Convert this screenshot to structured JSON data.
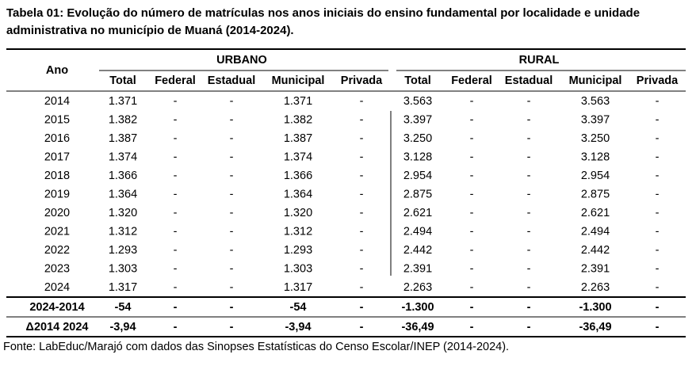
{
  "title": "Tabela 01: Evolução do número de matrículas nos anos iniciais do ensino fundamental por localidade e unidade administrativa no município de Muaná (2014-2024).",
  "table": {
    "year_header": "Ano",
    "groups": [
      "URBANO",
      "RURAL"
    ],
    "columns": [
      "Total",
      "Federal",
      "Estadual",
      "Municipal",
      "Privada",
      "Total",
      "Federal",
      "Estadual",
      "Municipal",
      "Privada"
    ],
    "rows": [
      [
        "2014",
        "1.371",
        "-",
        "-",
        "1.371",
        "-",
        "3.563",
        "-",
        "-",
        "3.563",
        "-"
      ],
      [
        "2015",
        "1.382",
        "-",
        "-",
        "1.382",
        "-",
        "3.397",
        "-",
        "-",
        "3.397",
        "-"
      ],
      [
        "2016",
        "1.387",
        "-",
        "-",
        "1.387",
        "-",
        "3.250",
        "-",
        "-",
        "3.250",
        "-"
      ],
      [
        "2017",
        "1.374",
        "-",
        "-",
        "1.374",
        "-",
        "3.128",
        "-",
        "-",
        "3.128",
        "-"
      ],
      [
        "2018",
        "1.366",
        "-",
        "-",
        "1.366",
        "-",
        "2.954",
        "-",
        "-",
        "2.954",
        "-"
      ],
      [
        "2019",
        "1.364",
        "-",
        "-",
        "1.364",
        "-",
        "2.875",
        "-",
        "-",
        "2.875",
        "-"
      ],
      [
        "2020",
        "1.320",
        "-",
        "-",
        "1.320",
        "-",
        "2.621",
        "-",
        "-",
        "2.621",
        "-"
      ],
      [
        "2021",
        "1.312",
        "-",
        "-",
        "1.312",
        "-",
        "2.494",
        "-",
        "-",
        "2.494",
        "-"
      ],
      [
        "2022",
        "1.293",
        "-",
        "-",
        "1.293",
        "-",
        "2.442",
        "-",
        "-",
        "2.442",
        "-"
      ],
      [
        "2023",
        "1.303",
        "-",
        "-",
        "1.303",
        "-",
        "2.391",
        "-",
        "-",
        "2.391",
        "-"
      ],
      [
        "2024",
        "1.317",
        "-",
        "-",
        "1.317",
        "-",
        "2.263",
        "-",
        "-",
        "2.263",
        "-"
      ]
    ],
    "summary_rows": [
      [
        "2024-2014",
        "-54",
        "-",
        "-",
        "-54",
        "-",
        "-1.300",
        "-",
        "-",
        "-1.300",
        "-"
      ],
      [
        "Δ2014 2024",
        "-3,94",
        "-",
        "-",
        "-3,94",
        "-",
        "-36,49",
        "-",
        "-",
        "-36,49",
        "-"
      ]
    ]
  },
  "source": "Fonte: LabEduc/Marajó com dados das Sinopses Estatísticas do Censo Escolar/INEP (2014-2024)."
}
